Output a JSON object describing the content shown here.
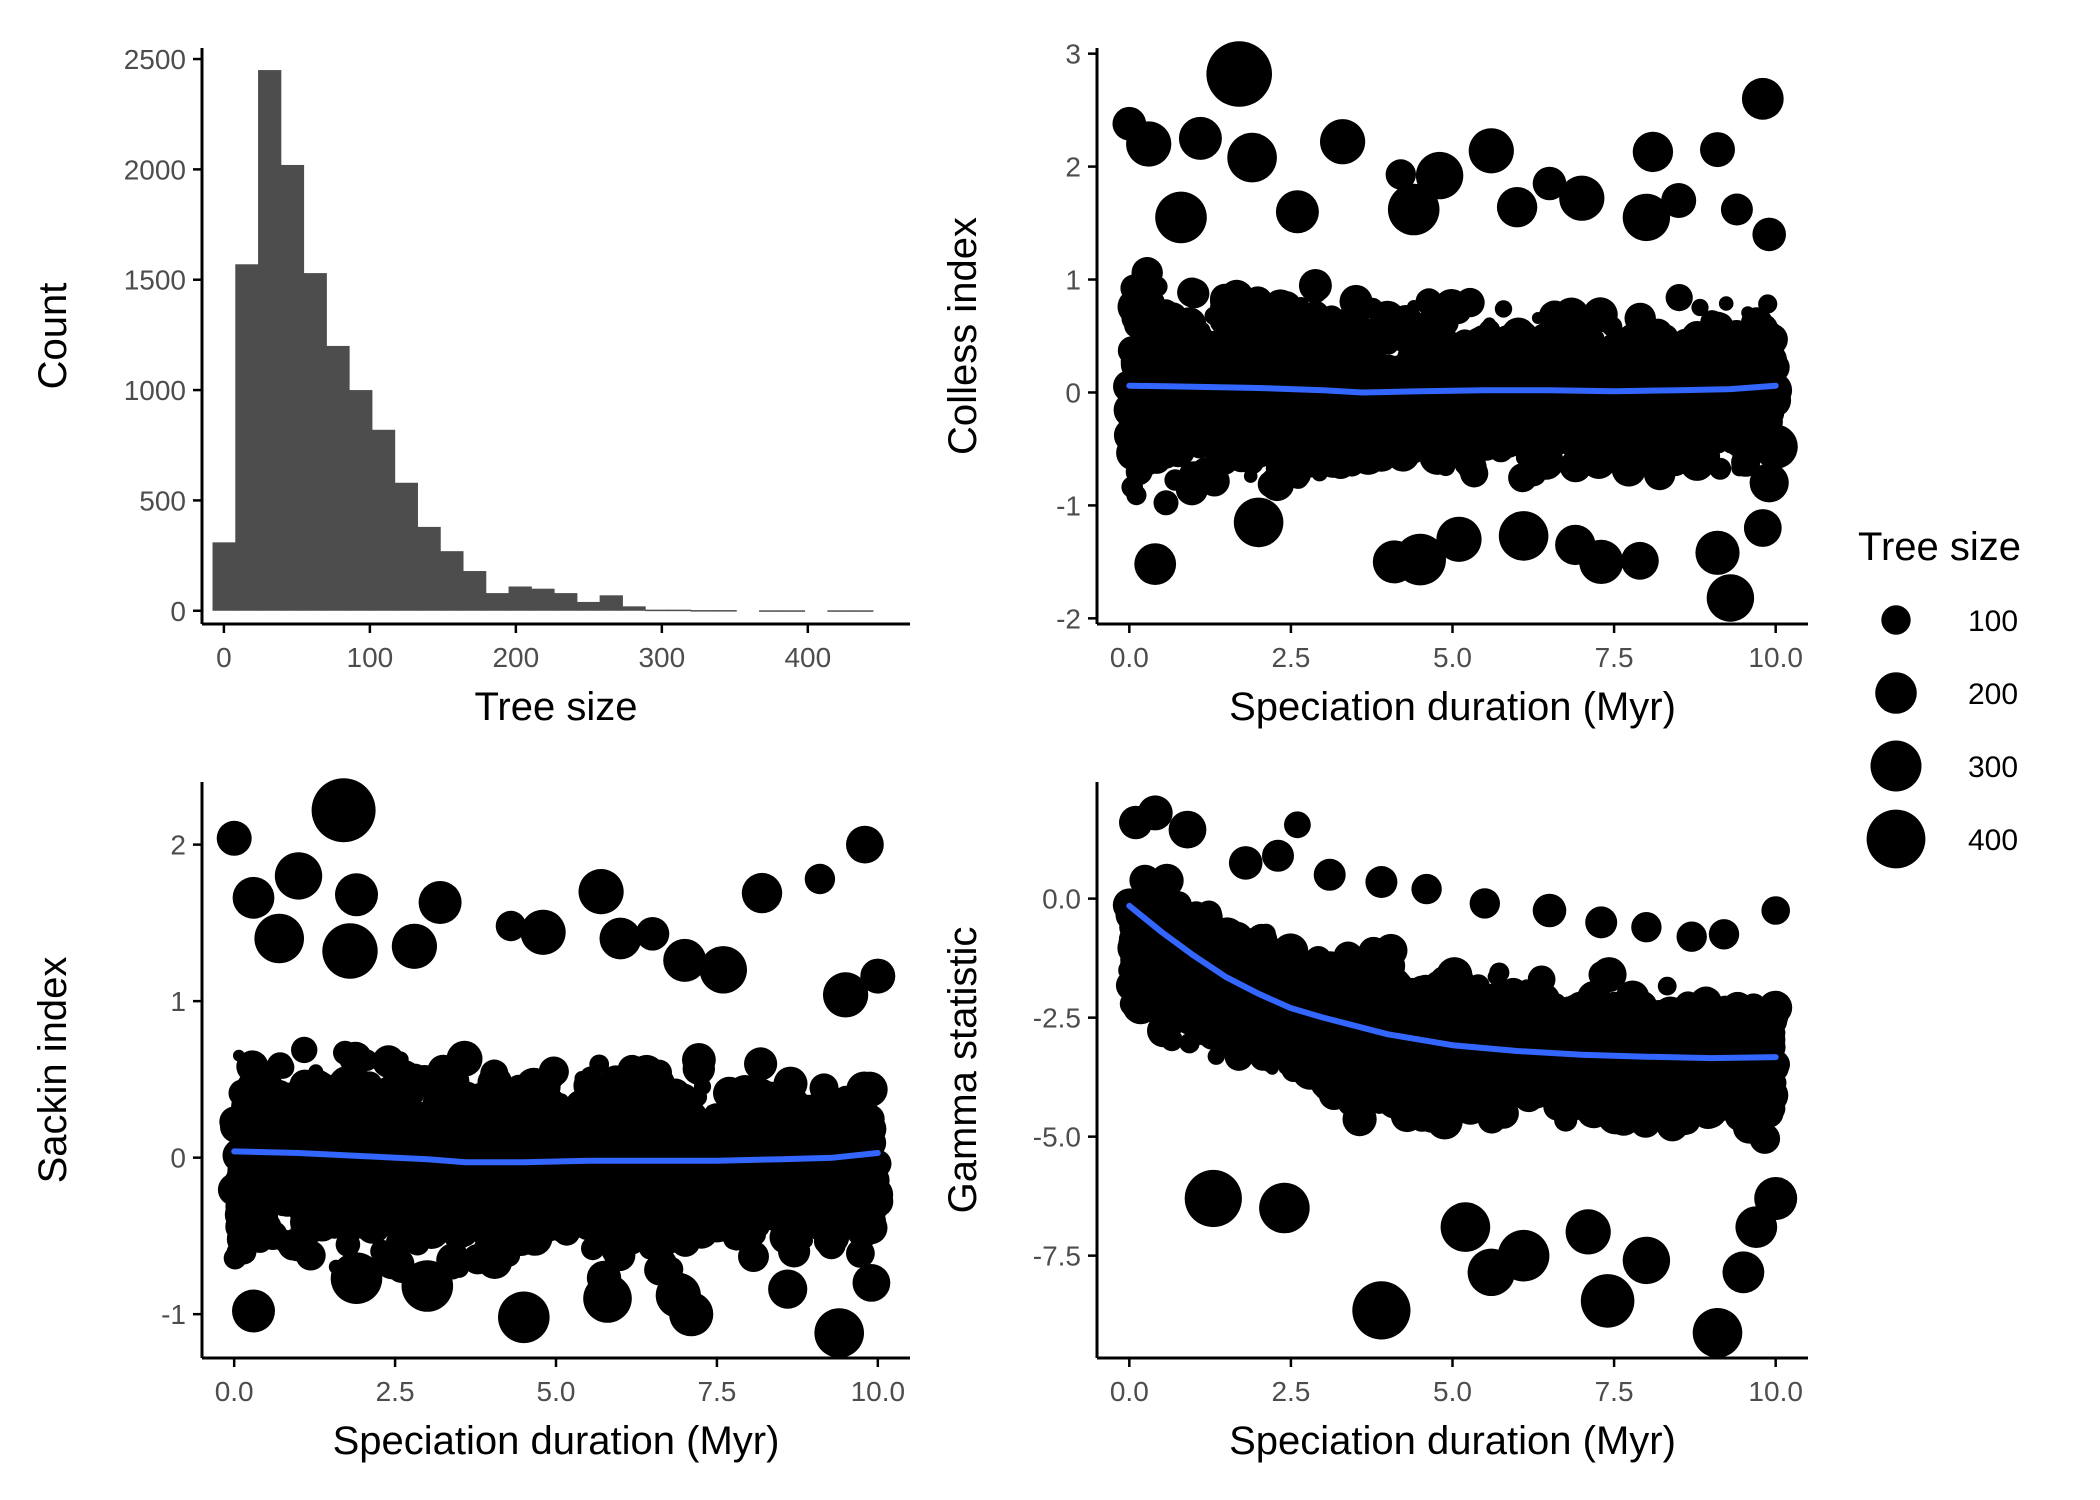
{
  "colors": {
    "bar": "#4d4d4d",
    "point": "#000000",
    "smooth": "#3366ff",
    "axis": "#000000",
    "tick_text": "#4d4d4d"
  },
  "legend": {
    "title": "Tree size",
    "entries": [
      {
        "label": "100",
        "value": 100
      },
      {
        "label": "200",
        "value": 200
      },
      {
        "label": "300",
        "value": 300
      },
      {
        "label": "400",
        "value": 400
      }
    ]
  },
  "chart_data": [
    {
      "type": "bar",
      "xlabel": "Tree size",
      "ylabel": "Count",
      "xlim": [
        -15,
        470
      ],
      "ylim": [
        -60,
        2550
      ],
      "x_ticks": [
        {
          "value": 0,
          "label": "0"
        },
        {
          "value": 100,
          "label": "100"
        },
        {
          "value": 200,
          "label": "200"
        },
        {
          "value": 300,
          "label": "300"
        },
        {
          "value": 400,
          "label": "400"
        }
      ],
      "y_ticks": [
        {
          "value": 0,
          "label": "0"
        },
        {
          "value": 500,
          "label": "500"
        },
        {
          "value": 1000,
          "label": "1000"
        },
        {
          "value": 1500,
          "label": "1500"
        },
        {
          "value": 2000,
          "label": "2000"
        },
        {
          "value": 2500,
          "label": "2500"
        }
      ],
      "bin_width": 15.6,
      "bin_starts": [
        -7.8,
        7.8,
        23.4,
        39,
        54.6,
        70.2,
        85.8,
        101.4,
        117,
        132.6,
        148.2,
        163.8,
        179.4,
        195,
        210.6,
        226.2,
        241.8,
        257.4,
        273,
        288.6,
        304.2,
        319.8,
        335.4,
        351,
        366.6,
        382.2,
        397.8,
        413.4,
        429
      ],
      "values": [
        310,
        1570,
        2450,
        2020,
        1530,
        1200,
        1000,
        820,
        580,
        380,
        270,
        180,
        80,
        110,
        100,
        80,
        40,
        70,
        20,
        5,
        5,
        3,
        3,
        0,
        2,
        2,
        0,
        2,
        2
      ]
    },
    {
      "type": "scatter",
      "xlabel": "Speciation duration (Myr)",
      "ylabel": "Colless index",
      "xlim": [
        -0.5,
        10.5
      ],
      "ylim": [
        -2.05,
        3.05
      ],
      "x_ticks": [
        {
          "value": 0,
          "label": "0.0"
        },
        {
          "value": 2.5,
          "label": "2.5"
        },
        {
          "value": 5,
          "label": "5.0"
        },
        {
          "value": 7.5,
          "label": "7.5"
        },
        {
          "value": 10,
          "label": "10.0"
        }
      ],
      "y_ticks": [
        {
          "value": -2,
          "label": "-2"
        },
        {
          "value": -1,
          "label": "-1"
        },
        {
          "value": 0,
          "label": "0"
        },
        {
          "value": 1,
          "label": "1"
        },
        {
          "value": 2,
          "label": "2"
        },
        {
          "value": 3,
          "label": "3"
        }
      ],
      "smooth": {
        "x": [
          0,
          1,
          2,
          3,
          3.6,
          4.5,
          5.5,
          6.5,
          7.5,
          8.5,
          9.3,
          10
        ],
        "y": [
          0.06,
          0.05,
          0.04,
          0.02,
          0.0,
          0.01,
          0.02,
          0.02,
          0.01,
          0.02,
          0.03,
          0.06
        ]
      },
      "band": {
        "center": [
          0.04,
          0.02,
          0.0,
          0.0,
          0.0,
          0.02
        ],
        "spread": [
          0.75,
          0.62,
          0.55,
          0.52,
          0.5,
          0.55
        ],
        "count": 1700
      },
      "points": [
        {
          "x": 1.7,
          "y": 2.82,
          "size": 420
        },
        {
          "x": 9.8,
          "y": 2.6,
          "size": 170
        },
        {
          "x": 0.0,
          "y": 2.38,
          "size": 110
        },
        {
          "x": 0.3,
          "y": 2.2,
          "size": 200
        },
        {
          "x": 1.1,
          "y": 2.25,
          "size": 180
        },
        {
          "x": 3.3,
          "y": 2.22,
          "size": 200
        },
        {
          "x": 5.6,
          "y": 2.14,
          "size": 200
        },
        {
          "x": 8.1,
          "y": 2.13,
          "size": 160
        },
        {
          "x": 9.1,
          "y": 2.15,
          "size": 120
        },
        {
          "x": 1.9,
          "y": 2.08,
          "size": 240
        },
        {
          "x": 4.2,
          "y": 1.93,
          "size": 90
        },
        {
          "x": 4.8,
          "y": 1.92,
          "size": 220
        },
        {
          "x": 6.5,
          "y": 1.85,
          "size": 110
        },
        {
          "x": 7.0,
          "y": 1.72,
          "size": 200
        },
        {
          "x": 8.5,
          "y": 1.7,
          "size": 120
        },
        {
          "x": 9.4,
          "y": 1.62,
          "size": 100
        },
        {
          "x": 4.4,
          "y": 1.62,
          "size": 260
        },
        {
          "x": 8.0,
          "y": 1.55,
          "size": 220
        },
        {
          "x": 6.0,
          "y": 1.64,
          "size": 160
        },
        {
          "x": 0.8,
          "y": 1.55,
          "size": 260
        },
        {
          "x": 2.6,
          "y": 1.6,
          "size": 180
        },
        {
          "x": 9.9,
          "y": 1.4,
          "size": 110
        },
        {
          "x": 9.3,
          "y": -1.82,
          "size": 220
        },
        {
          "x": 0.4,
          "y": -1.52,
          "size": 170
        },
        {
          "x": 4.1,
          "y": -1.5,
          "size": 180
        },
        {
          "x": 4.5,
          "y": -1.48,
          "size": 260
        },
        {
          "x": 5.1,
          "y": -1.3,
          "size": 200
        },
        {
          "x": 6.9,
          "y": -1.35,
          "size": 160
        },
        {
          "x": 7.3,
          "y": -1.5,
          "size": 190
        },
        {
          "x": 7.9,
          "y": -1.49,
          "size": 140
        },
        {
          "x": 9.1,
          "y": -1.42,
          "size": 190
        },
        {
          "x": 9.8,
          "y": -1.2,
          "size": 140
        },
        {
          "x": 6.1,
          "y": -1.27,
          "size": 240
        },
        {
          "x": 2.0,
          "y": -1.15,
          "size": 240
        },
        {
          "x": 10.0,
          "y": -0.48,
          "size": 190
        },
        {
          "x": 9.9,
          "y": -0.8,
          "size": 150
        }
      ]
    },
    {
      "type": "scatter",
      "xlabel": "Speciation duration (Myr)",
      "ylabel": "Sackin index",
      "xlim": [
        -0.5,
        10.5
      ],
      "ylim": [
        -1.28,
        2.4
      ],
      "x_ticks": [
        {
          "value": 0,
          "label": "0.0"
        },
        {
          "value": 2.5,
          "label": "2.5"
        },
        {
          "value": 5,
          "label": "5.0"
        },
        {
          "value": 7.5,
          "label": "7.5"
        },
        {
          "value": 10,
          "label": "10.0"
        }
      ],
      "y_ticks": [
        {
          "value": -1,
          "label": "-1"
        },
        {
          "value": 0,
          "label": "0"
        },
        {
          "value": 1,
          "label": "1"
        },
        {
          "value": 2,
          "label": "2"
        }
      ],
      "smooth": {
        "x": [
          0,
          1,
          2,
          3,
          3.6,
          4.5,
          5.5,
          6.5,
          7.5,
          8.5,
          9.3,
          10
        ],
        "y": [
          0.04,
          0.03,
          0.01,
          -0.01,
          -0.03,
          -0.03,
          -0.02,
          -0.02,
          -0.02,
          -0.01,
          0.0,
          0.03
        ]
      },
      "band": {
        "center": [
          0.0,
          -0.02,
          -0.04,
          -0.05,
          -0.05,
          -0.03
        ],
        "spread": [
          0.55,
          0.5,
          0.46,
          0.45,
          0.45,
          0.48
        ],
        "count": 1700
      },
      "points": [
        {
          "x": 1.7,
          "y": 2.22,
          "size": 400
        },
        {
          "x": 0.0,
          "y": 2.04,
          "size": 120
        },
        {
          "x": 9.8,
          "y": 2.0,
          "size": 140
        },
        {
          "x": 9.1,
          "y": 1.78,
          "size": 90
        },
        {
          "x": 0.3,
          "y": 1.66,
          "size": 170
        },
        {
          "x": 1.0,
          "y": 1.8,
          "size": 220
        },
        {
          "x": 1.9,
          "y": 1.68,
          "size": 180
        },
        {
          "x": 3.2,
          "y": 1.63,
          "size": 180
        },
        {
          "x": 5.7,
          "y": 1.7,
          "size": 200
        },
        {
          "x": 8.2,
          "y": 1.69,
          "size": 160
        },
        {
          "x": 4.3,
          "y": 1.48,
          "size": 90
        },
        {
          "x": 4.8,
          "y": 1.44,
          "size": 200
        },
        {
          "x": 6.0,
          "y": 1.4,
          "size": 170
        },
        {
          "x": 6.5,
          "y": 1.43,
          "size": 110
        },
        {
          "x": 2.8,
          "y": 1.35,
          "size": 200
        },
        {
          "x": 0.7,
          "y": 1.4,
          "size": 240
        },
        {
          "x": 1.8,
          "y": 1.32,
          "size": 300
        },
        {
          "x": 7.6,
          "y": 1.2,
          "size": 220
        },
        {
          "x": 10.0,
          "y": 1.16,
          "size": 120
        },
        {
          "x": 9.5,
          "y": 1.04,
          "size": 200
        },
        {
          "x": 7.0,
          "y": 1.26,
          "size": 180
        },
        {
          "x": 9.4,
          "y": -1.12,
          "size": 240
        },
        {
          "x": 4.5,
          "y": -1.02,
          "size": 260
        },
        {
          "x": 0.3,
          "y": -0.98,
          "size": 180
        },
        {
          "x": 3.0,
          "y": -0.82,
          "size": 260
        },
        {
          "x": 6.9,
          "y": -0.88,
          "size": 200
        },
        {
          "x": 7.1,
          "y": -1.0,
          "size": 190
        },
        {
          "x": 8.6,
          "y": -0.84,
          "size": 150
        },
        {
          "x": 9.9,
          "y": -0.8,
          "size": 140
        },
        {
          "x": 1.9,
          "y": -0.77,
          "size": 260
        },
        {
          "x": 5.8,
          "y": -0.9,
          "size": 230
        }
      ]
    },
    {
      "type": "scatter",
      "xlabel": "Speciation duration (Myr)",
      "ylabel": "Gamma statistic",
      "xlim": [
        -0.5,
        10.5
      ],
      "ylim": [
        -9.65,
        2.45
      ],
      "x_ticks": [
        {
          "value": 0,
          "label": "0.0"
        },
        {
          "value": 2.5,
          "label": "2.5"
        },
        {
          "value": 5,
          "label": "5.0"
        },
        {
          "value": 7.5,
          "label": "7.5"
        },
        {
          "value": 10,
          "label": "10.0"
        }
      ],
      "y_ticks": [
        {
          "value": -7.5,
          "label": "-7.5"
        },
        {
          "value": -5,
          "label": "-5.0"
        },
        {
          "value": -2.5,
          "label": "-2.5"
        },
        {
          "value": 0,
          "label": "0.0"
        }
      ],
      "smooth": {
        "x": [
          0,
          0.5,
          1,
          1.5,
          2,
          2.5,
          3,
          4,
          5,
          6,
          7,
          8,
          9,
          10
        ],
        "y": [
          -0.15,
          -0.7,
          -1.2,
          -1.65,
          -2.0,
          -2.3,
          -2.5,
          -2.85,
          -3.08,
          -3.2,
          -3.28,
          -3.32,
          -3.35,
          -3.33
        ]
      },
      "band": {
        "center": [
          -1.0,
          -2.2,
          -2.9,
          -3.2,
          -3.35,
          -3.4
        ],
        "spread": [
          1.1,
          1.15,
          1.2,
          1.15,
          1.1,
          1.1
        ],
        "count": 1900
      },
      "points": [
        {
          "x": 3.9,
          "y": -8.65,
          "size": 330
        },
        {
          "x": 9.1,
          "y": -9.12,
          "size": 240
        },
        {
          "x": 7.4,
          "y": -8.45,
          "size": 280
        },
        {
          "x": 1.3,
          "y": -6.3,
          "size": 320
        },
        {
          "x": 8.0,
          "y": -7.6,
          "size": 220
        },
        {
          "x": 9.5,
          "y": -7.85,
          "size": 170
        },
        {
          "x": 5.6,
          "y": -7.85,
          "size": 220
        },
        {
          "x": 5.2,
          "y": -6.9,
          "size": 240
        },
        {
          "x": 7.1,
          "y": -7.0,
          "size": 200
        },
        {
          "x": 9.7,
          "y": -6.9,
          "size": 170
        },
        {
          "x": 10.0,
          "y": -6.3,
          "size": 180
        },
        {
          "x": 2.4,
          "y": -6.5,
          "size": 250
        },
        {
          "x": 6.1,
          "y": -7.5,
          "size": 260
        },
        {
          "x": 2.6,
          "y": 1.55,
          "size": 70
        },
        {
          "x": 0.1,
          "y": 1.6,
          "size": 110
        },
        {
          "x": 0.4,
          "y": 1.8,
          "size": 120
        },
        {
          "x": 0.9,
          "y": 1.45,
          "size": 140
        },
        {
          "x": 1.8,
          "y": 0.75,
          "size": 110
        },
        {
          "x": 2.3,
          "y": 0.9,
          "size": 100
        },
        {
          "x": 3.1,
          "y": 0.5,
          "size": 100
        },
        {
          "x": 3.9,
          "y": 0.35,
          "size": 100
        },
        {
          "x": 4.6,
          "y": 0.2,
          "size": 90
        },
        {
          "x": 5.5,
          "y": -0.1,
          "size": 90
        },
        {
          "x": 6.5,
          "y": -0.25,
          "size": 110
        },
        {
          "x": 7.3,
          "y": -0.5,
          "size": 100
        },
        {
          "x": 8.0,
          "y": -0.6,
          "size": 90
        },
        {
          "x": 8.7,
          "y": -0.8,
          "size": 90
        },
        {
          "x": 9.2,
          "y": -0.75,
          "size": 90
        },
        {
          "x": 10.0,
          "y": -0.25,
          "size": 80
        }
      ]
    }
  ]
}
